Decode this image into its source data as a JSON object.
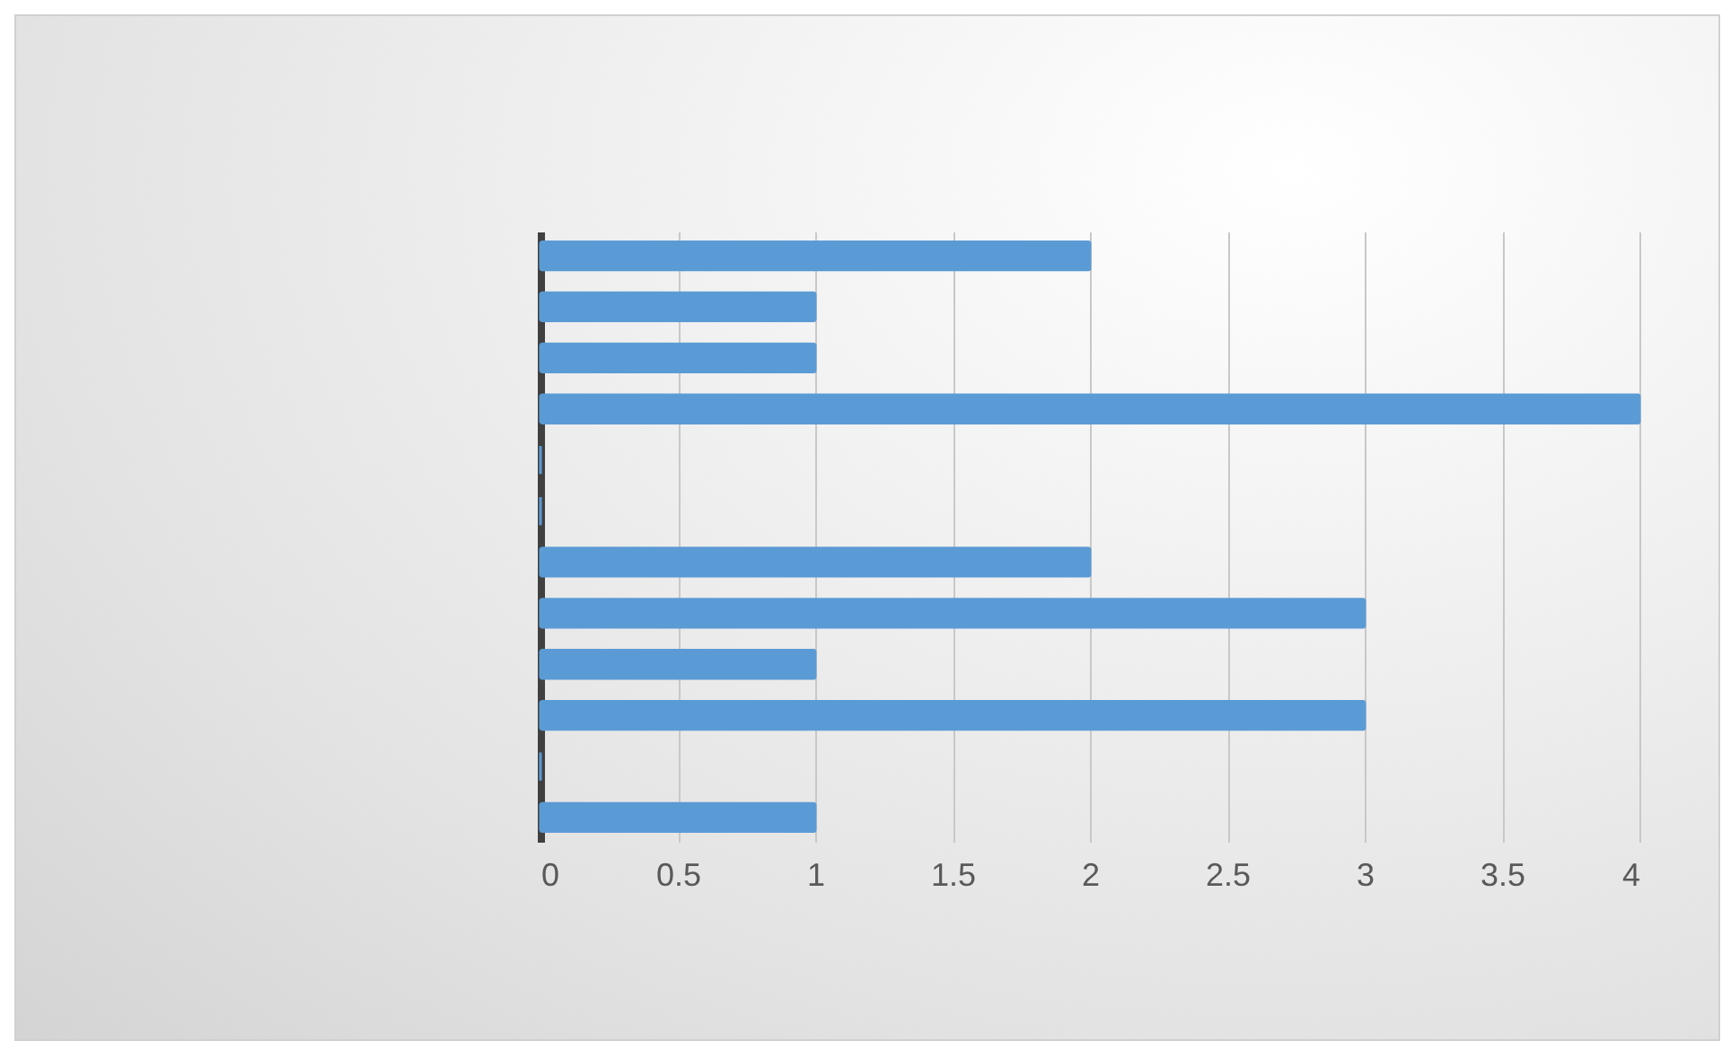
{
  "chart_data": {
    "type": "bar",
    "orientation": "horizontal",
    "categories": [
      null,
      null,
      null,
      null,
      null,
      null,
      null,
      null,
      null,
      null,
      null,
      null
    ],
    "values": [
      2,
      1,
      1,
      4,
      0,
      0,
      2,
      3,
      1,
      3,
      0,
      1
    ],
    "color": "#5b9bd5",
    "xlim": [
      0,
      4
    ],
    "xticks": [
      0,
      0.5,
      1,
      1.5,
      2,
      2.5,
      3,
      3.5,
      4
    ],
    "grid": "x",
    "tick_labels": "x"
  }
}
